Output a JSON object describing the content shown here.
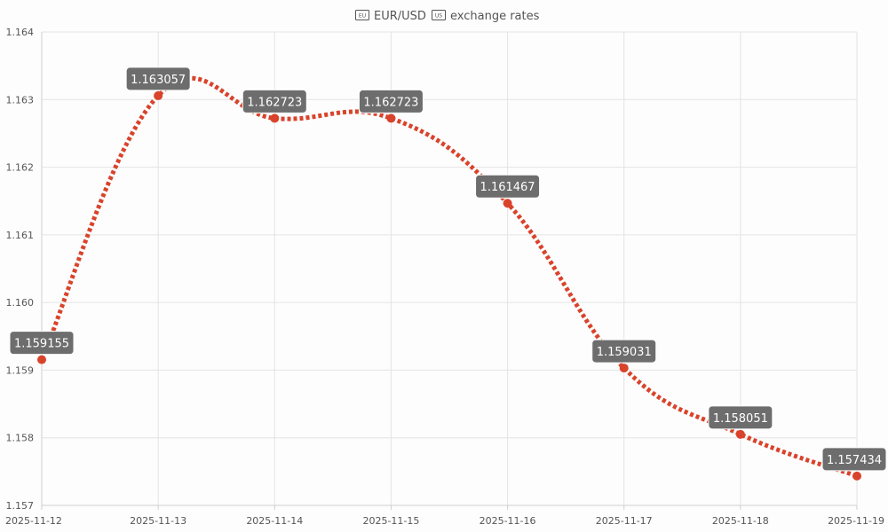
{
  "chart_data": {
    "type": "line",
    "title_parts": {
      "flag_left": "EU",
      "pair": "EUR/USD",
      "flag_right": "US",
      "suffix": "exchange rates"
    },
    "categories": [
      "2025-11-12",
      "2025-11-13",
      "2025-11-14",
      "2025-11-15",
      "2025-11-16",
      "2025-11-17",
      "2025-11-18",
      "2025-11-19"
    ],
    "series": [
      {
        "values": [
          1.159155,
          1.163057,
          1.162723,
          1.162723,
          1.161467,
          1.159031,
          1.158051,
          1.157434
        ],
        "labels": [
          "1.159155",
          "1.163057",
          "1.162723",
          "1.162723",
          "1.161467",
          "1.159031",
          "1.158051",
          "1.157434"
        ],
        "color": "#d9432b",
        "line_style": "dotted"
      }
    ],
    "y_ticks": [
      "1.164",
      "1.163",
      "1.162",
      "1.161",
      "1.160",
      "1.159",
      "1.158",
      "1.157"
    ],
    "ylim": [
      1.157,
      1.164
    ],
    "grid": true,
    "xlabel": "",
    "ylabel": ""
  }
}
